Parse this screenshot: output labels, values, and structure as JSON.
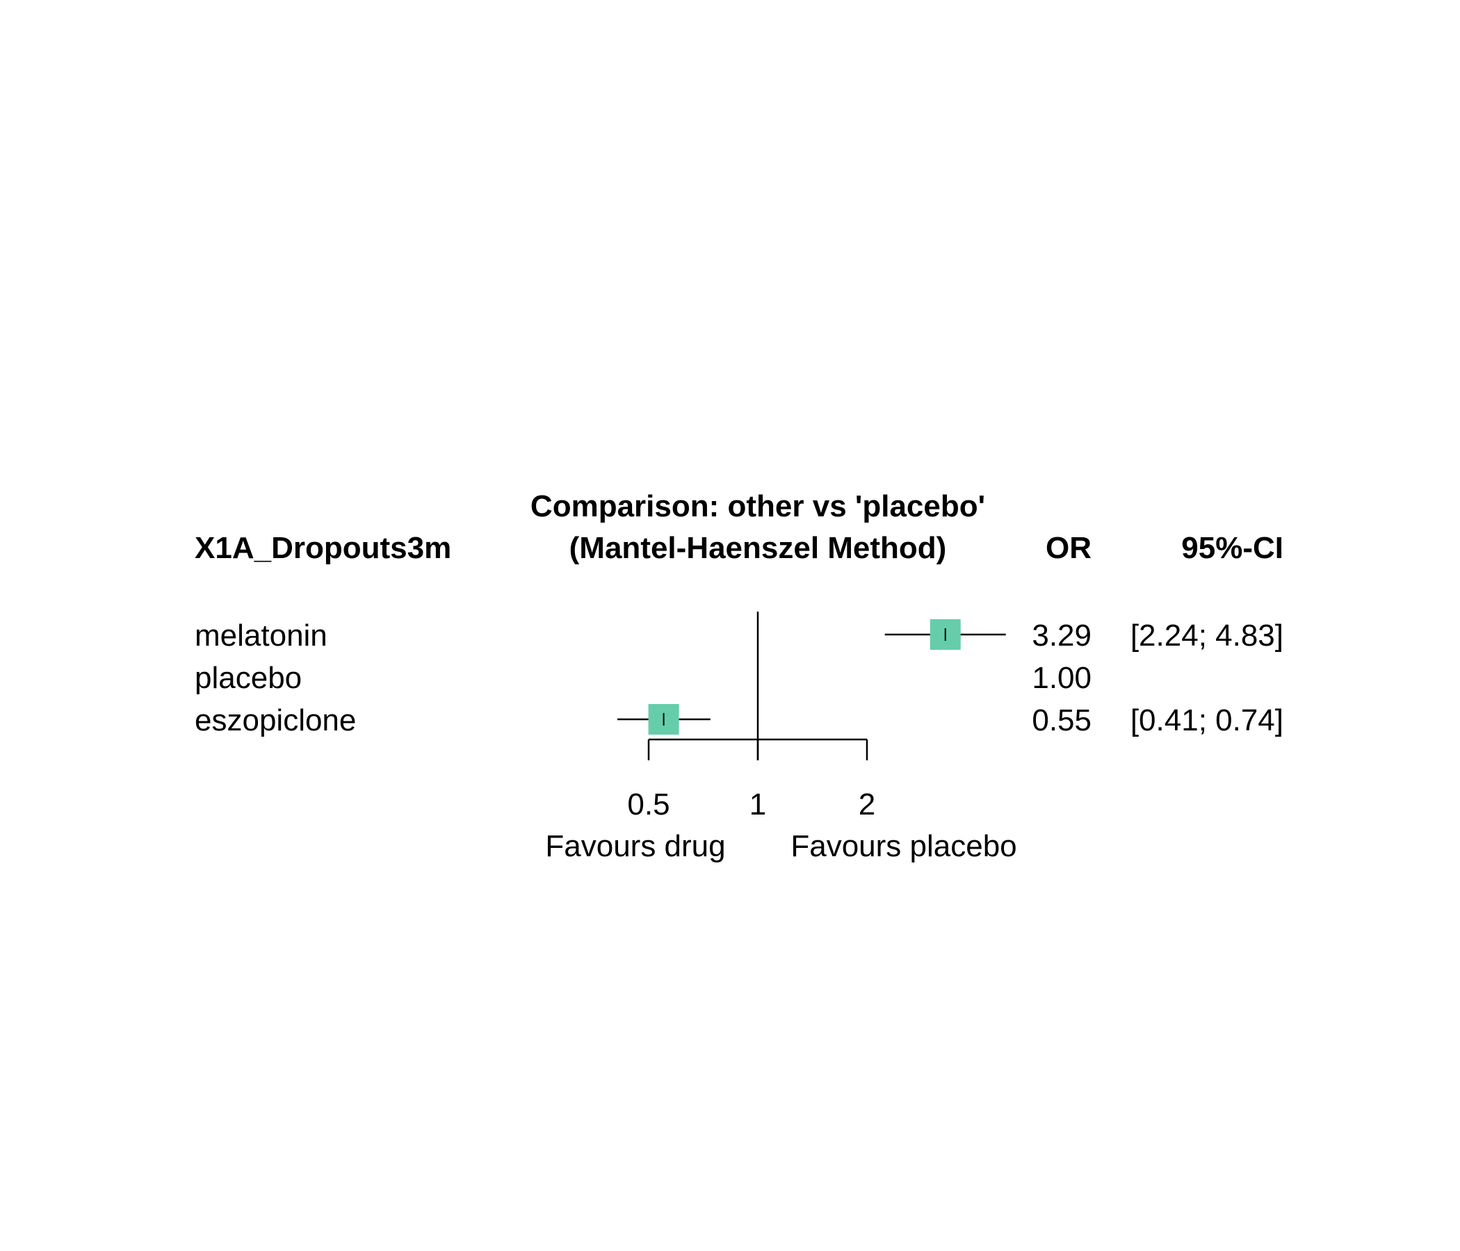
{
  "chart_data": {
    "type": "forest",
    "title": "Comparison: other vs 'placebo'",
    "subtitle": "(Mantel-Haenszel Method)",
    "outcome_label": "X1A_Dropouts3m",
    "column_headers": {
      "estimate": "OR",
      "ci": "95%-CI"
    },
    "scale": "log",
    "reference_value": 1,
    "x_ticks": [
      {
        "value": 0.5,
        "label": "0.5"
      },
      {
        "value": 1,
        "label": "1"
      },
      {
        "value": 2,
        "label": "2"
      }
    ],
    "x_range": [
      0.5,
      2
    ],
    "favours_left": "Favours drug",
    "favours_right": "Favours placebo",
    "marker_color": "#66CDAA",
    "rows": [
      {
        "label": "melatonin",
        "or": 3.29,
        "lower": 2.24,
        "upper": 4.83,
        "or_text": "3.29",
        "ci_text": "[2.24; 4.83]"
      },
      {
        "label": "placebo",
        "or": 1.0,
        "lower": null,
        "upper": null,
        "or_text": "1.00",
        "ci_text": ""
      },
      {
        "label": "eszopiclone",
        "or": 0.55,
        "lower": 0.41,
        "upper": 0.74,
        "or_text": "0.55",
        "ci_text": "[0.41; 0.74]"
      }
    ]
  }
}
